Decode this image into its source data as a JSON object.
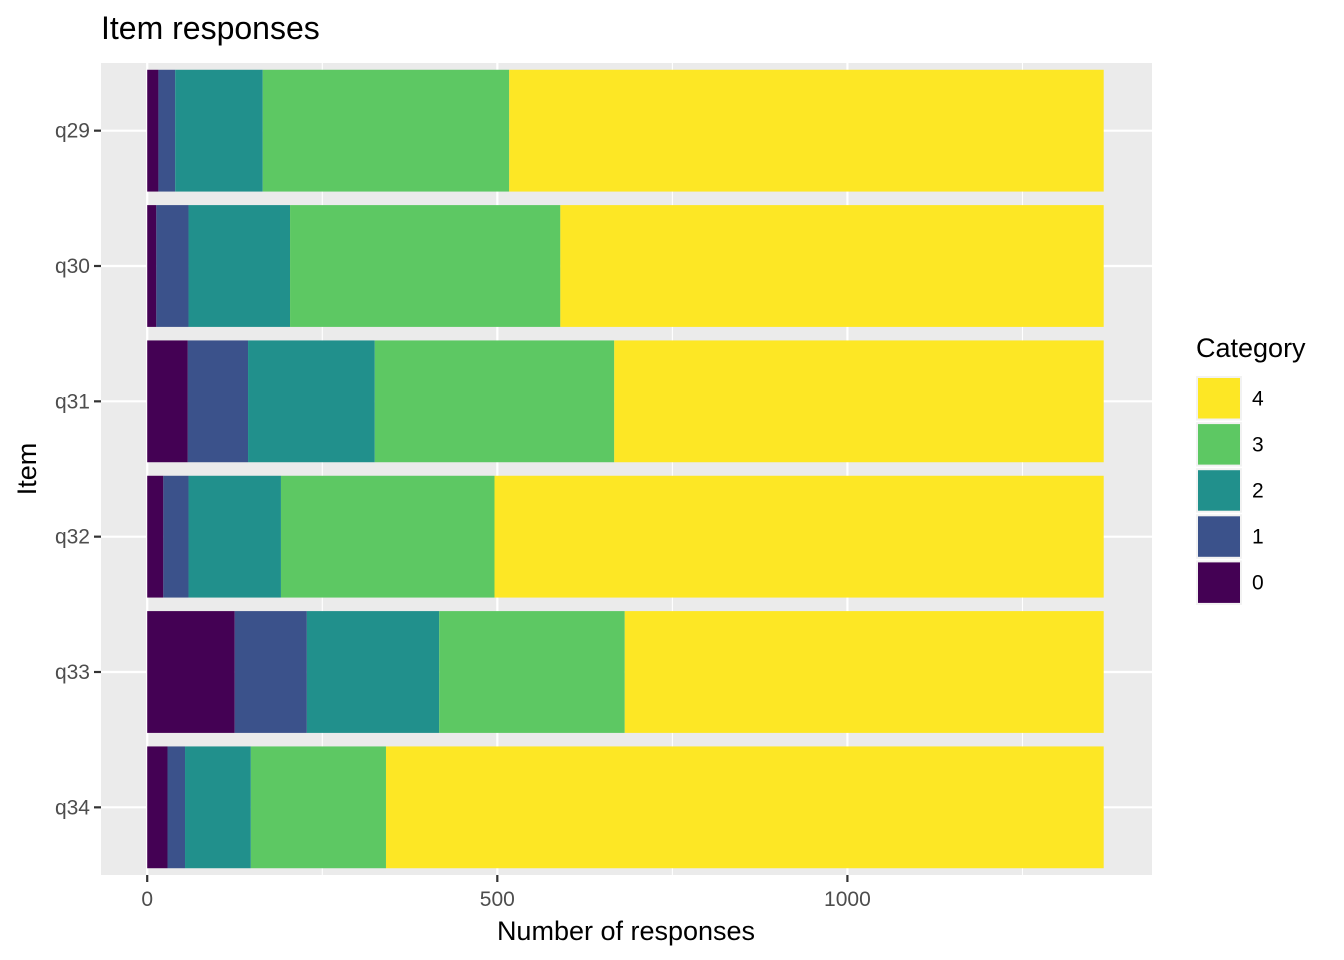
{
  "chart_data": {
    "type": "bar",
    "orientation": "horizontal",
    "stacked": true,
    "title": "Item responses",
    "xlabel": "Number of responses",
    "ylabel": "Item",
    "xlim": [
      -66,
      1435
    ],
    "x_ticks": [
      0,
      500,
      1000
    ],
    "x_tick_labels": [
      "0",
      "500",
      "1000"
    ],
    "categories": [
      "q29",
      "q30",
      "q31",
      "q32",
      "q33",
      "q34"
    ],
    "grid": true,
    "legend": {
      "title": "Category",
      "position": "right",
      "entries": [
        "4",
        "3",
        "2",
        "1",
        "0"
      ]
    },
    "series": [
      {
        "name": "0",
        "color": "#440154",
        "values": [
          16,
          13,
          58,
          23,
          125,
          29
        ]
      },
      {
        "name": "1",
        "color": "#3B528B",
        "values": [
          24,
          46,
          86,
          36,
          103,
          25
        ]
      },
      {
        "name": "2",
        "color": "#21908C",
        "values": [
          125,
          145,
          181,
          132,
          189,
          94
        ]
      },
      {
        "name": "3",
        "color": "#5DC863",
        "values": [
          352,
          386,
          342,
          305,
          265,
          193
        ]
      },
      {
        "name": "4",
        "color": "#FDE725",
        "values": [
          849,
          776,
          699,
          870,
          684,
          1025
        ]
      }
    ]
  }
}
